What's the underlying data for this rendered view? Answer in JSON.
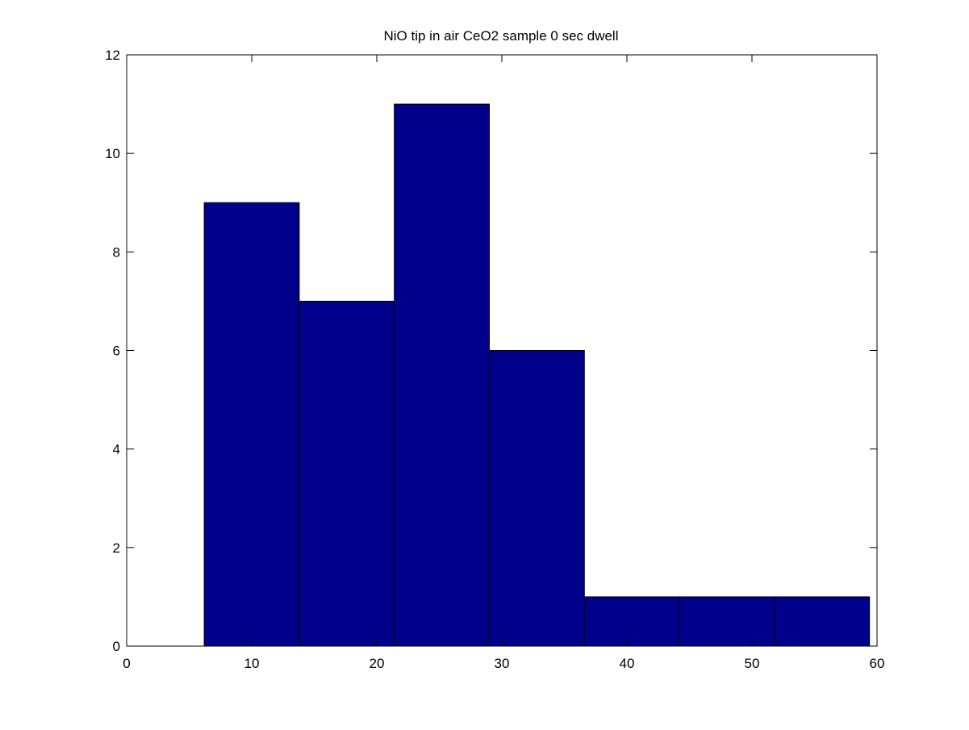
{
  "chart_data": {
    "type": "bar",
    "subtype": "histogram",
    "title": "NiO tip in air CeO2 sample 0 sec dwell",
    "xlabel": "",
    "ylabel": "",
    "bins": [
      {
        "x0": 6.2,
        "x1": 13.8,
        "count": 9
      },
      {
        "x0": 13.8,
        "x1": 21.4,
        "count": 7
      },
      {
        "x0": 21.4,
        "x1": 29.0,
        "count": 11
      },
      {
        "x0": 29.0,
        "x1": 36.6,
        "count": 6
      },
      {
        "x0": 36.6,
        "x1": 44.2,
        "count": 1
      },
      {
        "x0": 44.2,
        "x1": 51.8,
        "count": 1
      },
      {
        "x0": 51.8,
        "x1": 59.4,
        "count": 1
      }
    ],
    "xlim": [
      0,
      60
    ],
    "ylim": [
      0,
      12
    ],
    "xticks": [
      0,
      10,
      20,
      30,
      40,
      50,
      60
    ],
    "yticks": [
      0,
      2,
      4,
      6,
      8,
      10,
      12
    ],
    "xtick_labels": [
      "0",
      "10",
      "20",
      "30",
      "40",
      "50",
      "60"
    ],
    "ytick_labels": [
      "0",
      "2",
      "4",
      "6",
      "8",
      "10",
      "12"
    ],
    "grid": false,
    "legend": "none",
    "bar_color": "#00008b",
    "edge_color": "#000000"
  }
}
